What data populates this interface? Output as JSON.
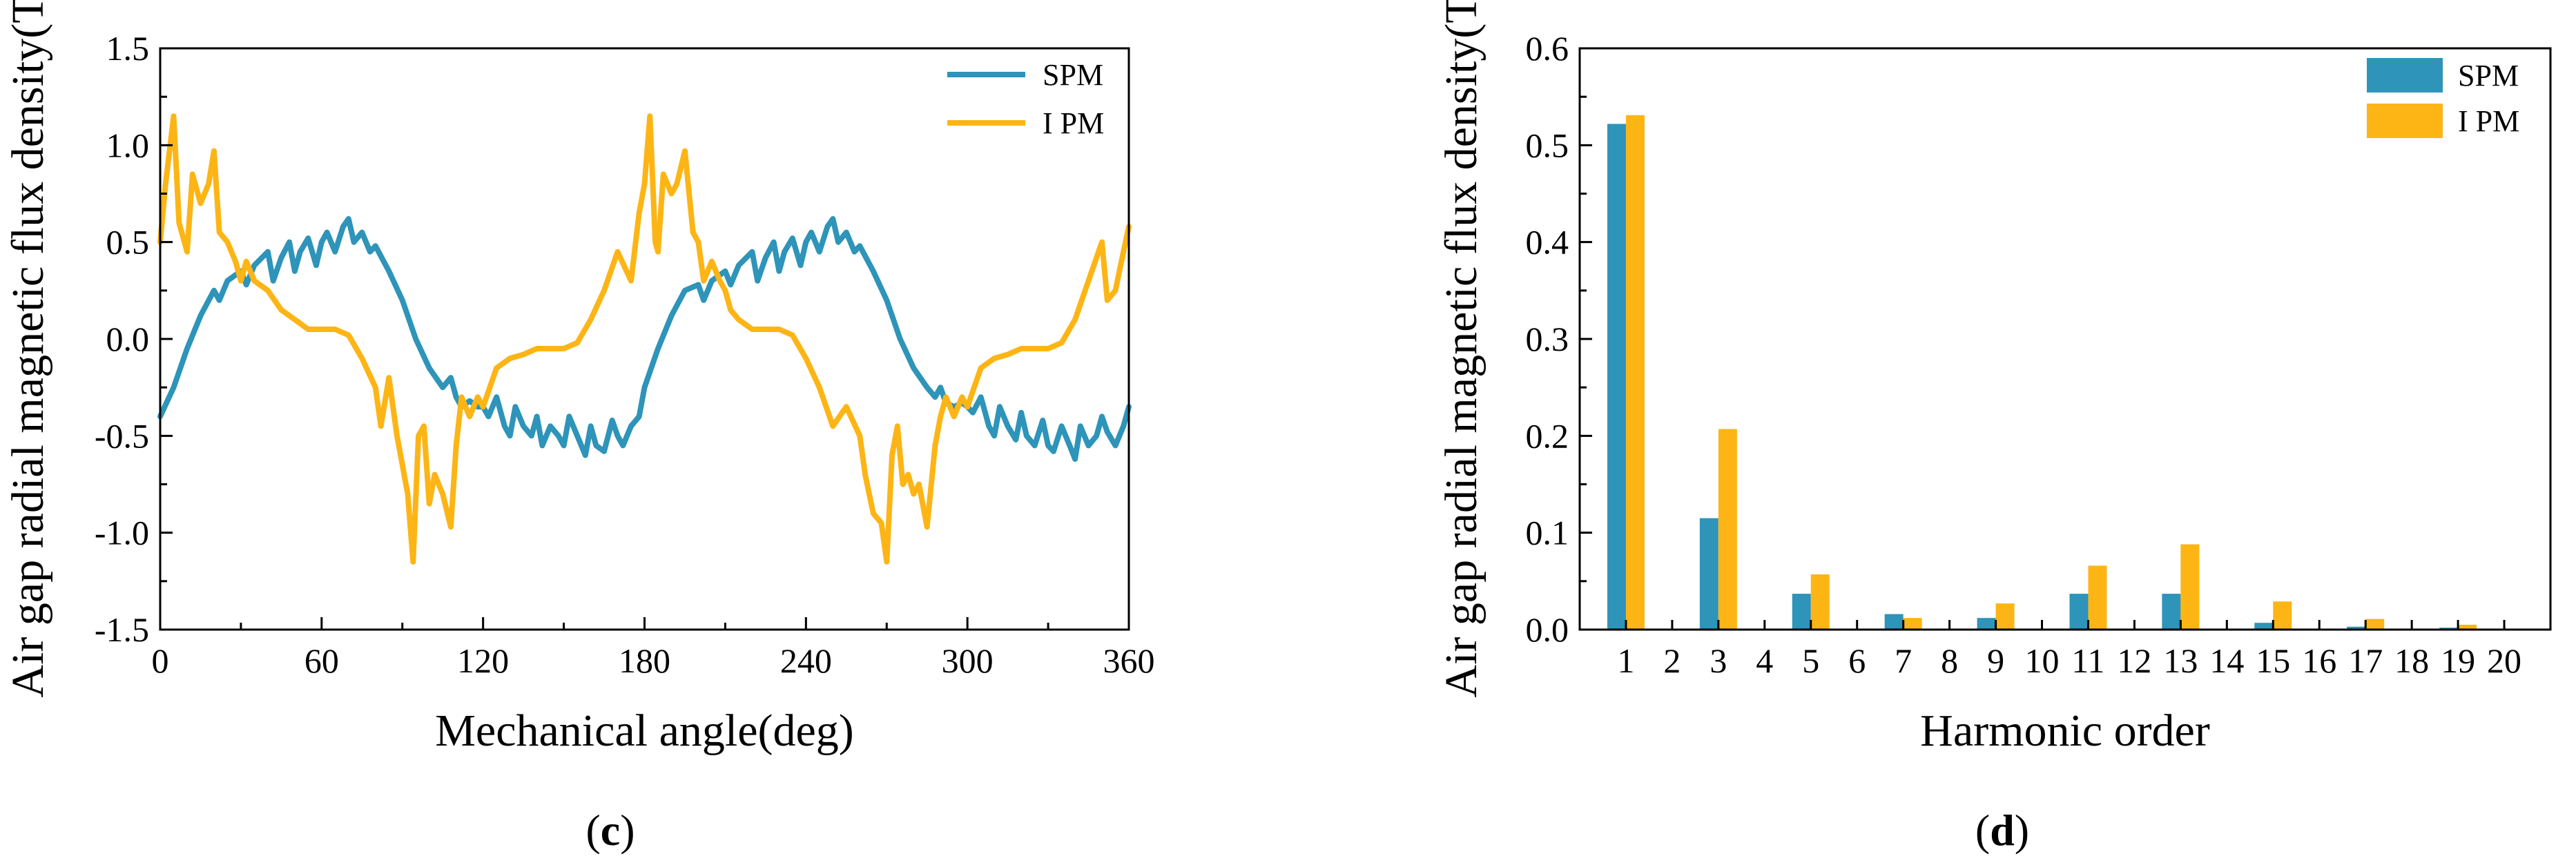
{
  "chart_data": [
    {
      "type": "line",
      "panel_label": "c",
      "title": "",
      "xlabel": "Mechanical angle(deg)",
      "ylabel": "Air gap radial magnetic flux density(T)",
      "xlim": [
        0,
        360
      ],
      "ylim": [
        -1.5,
        1.5
      ],
      "xticks": [
        0,
        60,
        120,
        180,
        240,
        300,
        360
      ],
      "xtick_labels": [
        "0",
        "60",
        "120",
        "180",
        "240",
        "300",
        "360"
      ],
      "yticks": [
        -1.5,
        -1.0,
        -0.5,
        0.0,
        0.5,
        1.0,
        1.5
      ],
      "ytick_labels": [
        "-1.5",
        "-1.0",
        "-0.5",
        "0.0",
        "0.5",
        "1.0",
        "1.5"
      ],
      "legend_position": "top-right",
      "series": [
        {
          "name": "SPM",
          "color": "#2e94b9",
          "x": [
            0,
            5,
            10,
            15,
            20,
            22,
            25,
            30,
            32,
            35,
            40,
            42,
            45,
            48,
            50,
            52,
            55,
            58,
            60,
            62,
            65,
            68,
            70,
            72,
            75,
            78,
            80,
            85,
            90,
            95,
            100,
            105,
            108,
            110,
            112,
            115,
            118,
            120,
            122,
            125,
            128,
            130,
            132,
            135,
            138,
            140,
            142,
            145,
            148,
            150,
            152,
            155,
            158,
            160,
            162,
            165,
            168,
            170,
            172,
            175,
            178,
            180,
            185,
            190,
            195,
            200,
            202,
            205,
            210,
            212,
            215,
            220,
            222,
            225,
            228,
            230,
            232,
            235,
            238,
            240,
            242,
            245,
            248,
            250,
            252,
            255,
            258,
            260,
            265,
            270,
            275,
            280,
            285,
            288,
            290,
            292,
            295,
            298,
            300,
            302,
            305,
            308,
            310,
            312,
            315,
            318,
            320,
            322,
            325,
            328,
            330,
            332,
            335,
            338,
            340,
            342,
            345,
            348,
            350,
            352,
            355,
            358,
            360
          ],
          "y": [
            -0.4,
            -0.25,
            -0.05,
            0.12,
            0.25,
            0.2,
            0.3,
            0.35,
            0.28,
            0.38,
            0.45,
            0.3,
            0.42,
            0.5,
            0.35,
            0.45,
            0.52,
            0.38,
            0.5,
            0.55,
            0.45,
            0.58,
            0.62,
            0.5,
            0.55,
            0.45,
            0.48,
            0.35,
            0.2,
            0.0,
            -0.15,
            -0.25,
            -0.2,
            -0.3,
            -0.35,
            -0.32,
            -0.35,
            -0.35,
            -0.4,
            -0.3,
            -0.45,
            -0.5,
            -0.35,
            -0.45,
            -0.5,
            -0.4,
            -0.55,
            -0.45,
            -0.5,
            -0.55,
            -0.4,
            -0.5,
            -0.6,
            -0.45,
            -0.55,
            -0.58,
            -0.42,
            -0.5,
            -0.55,
            -0.45,
            -0.4,
            -0.25,
            -0.05,
            0.12,
            0.25,
            0.28,
            0.2,
            0.3,
            0.35,
            0.28,
            0.38,
            0.45,
            0.3,
            0.42,
            0.5,
            0.35,
            0.45,
            0.52,
            0.38,
            0.5,
            0.55,
            0.45,
            0.58,
            0.62,
            0.5,
            0.55,
            0.45,
            0.48,
            0.35,
            0.2,
            0.0,
            -0.15,
            -0.25,
            -0.3,
            -0.25,
            -0.33,
            -0.35,
            -0.33,
            -0.35,
            -0.38,
            -0.3,
            -0.45,
            -0.5,
            -0.35,
            -0.45,
            -0.52,
            -0.38,
            -0.5,
            -0.55,
            -0.42,
            -0.55,
            -0.58,
            -0.45,
            -0.55,
            -0.62,
            -0.45,
            -0.55,
            -0.5,
            -0.4,
            -0.48,
            -0.55,
            -0.45,
            -0.35
          ]
        },
        {
          "name": "I PM",
          "color": "#fdb515",
          "x": [
            0,
            2,
            5,
            7,
            10,
            12,
            15,
            18,
            20,
            22,
            25,
            28,
            30,
            32,
            35,
            40,
            45,
            50,
            55,
            60,
            65,
            70,
            75,
            80,
            82,
            85,
            88,
            90,
            92,
            94,
            96,
            98,
            100,
            102,
            105,
            108,
            110,
            112,
            115,
            118,
            120,
            125,
            130,
            135,
            140,
            145,
            150,
            155,
            160,
            165,
            170,
            175,
            178,
            180,
            182,
            184,
            185,
            187,
            190,
            192,
            195,
            198,
            200,
            202,
            205,
            208,
            210,
            212,
            215,
            220,
            225,
            230,
            235,
            240,
            245,
            250,
            255,
            260,
            262,
            265,
            268,
            270,
            272,
            274,
            276,
            278,
            280,
            282,
            285,
            288,
            290,
            292,
            295,
            298,
            300,
            305,
            310,
            315,
            320,
            325,
            330,
            335,
            340,
            345,
            350,
            352,
            355,
            358,
            360
          ],
          "y": [
            0.5,
            0.8,
            1.15,
            0.6,
            0.45,
            0.85,
            0.7,
            0.8,
            0.97,
            0.55,
            0.5,
            0.4,
            0.3,
            0.4,
            0.3,
            0.25,
            0.15,
            0.1,
            0.05,
            0.05,
            0.05,
            0.02,
            -0.1,
            -0.25,
            -0.45,
            -0.2,
            -0.5,
            -0.65,
            -0.8,
            -1.15,
            -0.5,
            -0.45,
            -0.85,
            -0.7,
            -0.8,
            -0.97,
            -0.55,
            -0.3,
            -0.4,
            -0.3,
            -0.35,
            -0.15,
            -0.1,
            -0.08,
            -0.05,
            -0.05,
            -0.05,
            -0.02,
            0.1,
            0.25,
            0.45,
            0.3,
            0.65,
            0.8,
            1.15,
            0.5,
            0.45,
            0.85,
            0.75,
            0.8,
            0.97,
            0.55,
            0.5,
            0.3,
            0.4,
            0.3,
            0.25,
            0.15,
            0.1,
            0.05,
            0.05,
            0.05,
            0.02,
            -0.1,
            -0.25,
            -0.45,
            -0.35,
            -0.5,
            -0.7,
            -0.9,
            -0.95,
            -1.15,
            -0.6,
            -0.45,
            -0.75,
            -0.7,
            -0.8,
            -0.75,
            -0.97,
            -0.55,
            -0.4,
            -0.3,
            -0.4,
            -0.3,
            -0.35,
            -0.15,
            -0.1,
            -0.08,
            -0.05,
            -0.05,
            -0.05,
            -0.02,
            0.1,
            0.3,
            0.5,
            0.2,
            0.25,
            0.45,
            0.58
          ]
        }
      ]
    },
    {
      "type": "bar",
      "panel_label": "d",
      "title": "",
      "xlabel": "Harmonic order",
      "ylabel": "Air gap radial magnetic flux density(T)",
      "ylim": [
        0,
        0.6
      ],
      "yticks": [
        0.0,
        0.1,
        0.2,
        0.3,
        0.4,
        0.5,
        0.6
      ],
      "ytick_labels": [
        "0.0",
        "0.1",
        "0.2",
        "0.3",
        "0.4",
        "0.5",
        "0.6"
      ],
      "categories": [
        "1",
        "2",
        "3",
        "4",
        "5",
        "6",
        "7",
        "8",
        "9",
        "10",
        "11",
        "12",
        "13",
        "14",
        "15",
        "16",
        "17",
        "18",
        "19",
        "20"
      ],
      "legend_position": "top-right",
      "series": [
        {
          "name": "SPM",
          "color": "#2e94b9",
          "values": [
            0.522,
            0,
            0.115,
            0,
            0.037,
            0,
            0.016,
            0,
            0.012,
            0,
            0.037,
            0,
            0.037,
            0,
            0.007,
            0,
            0.003,
            0,
            0.002,
            0
          ]
        },
        {
          "name": "I PM",
          "color": "#fdb515",
          "values": [
            0.531,
            0,
            0.207,
            0,
            0.057,
            0,
            0.012,
            0,
            0.027,
            0,
            0.066,
            0,
            0.088,
            0,
            0.029,
            0,
            0.011,
            0,
            0.005,
            0
          ]
        }
      ]
    }
  ],
  "captions": {
    "c": "(c)",
    "d": "(d)"
  }
}
